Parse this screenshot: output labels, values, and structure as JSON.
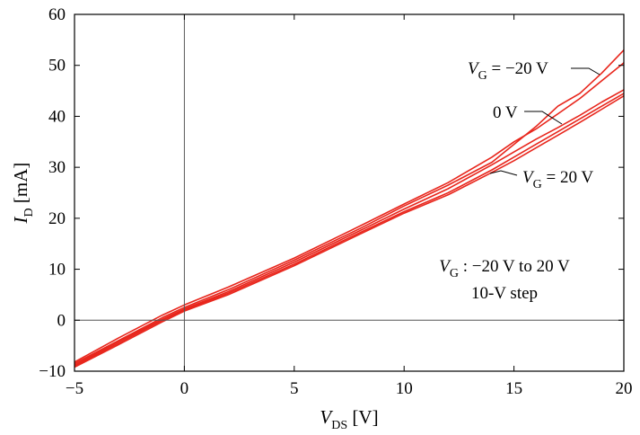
{
  "chart_data": {
    "type": "line",
    "xlabel": {
      "main": "V",
      "sub": "DS",
      "unit": " [V]"
    },
    "ylabel": {
      "main": "I",
      "sub": "D",
      "unit": " [mA]"
    },
    "xlim": [
      -5,
      20
    ],
    "ylim": [
      -10,
      60
    ],
    "xticks": [
      -5,
      0,
      5,
      10,
      15,
      20
    ],
    "yticks": [
      -10,
      0,
      10,
      20,
      30,
      40,
      50,
      60
    ],
    "grid": false,
    "zero_lines": true,
    "series_color": "#e8261c",
    "series": [
      {
        "x": [
          -5,
          -3,
          -1,
          0,
          2,
          5,
          8,
          10,
          12,
          14,
          15,
          16,
          17,
          18,
          19,
          20
        ],
        "y": [
          -8.2,
          -3.5,
          1.0,
          3.0,
          6.5,
          12.2,
          18.5,
          22.8,
          27.0,
          32.0,
          35.0,
          37.5,
          40.5,
          43.5,
          47.0,
          50.5
        ]
      },
      {
        "x": [
          -5,
          -3,
          -1,
          0,
          2,
          5,
          8,
          10,
          12,
          14,
          15,
          16,
          17,
          18,
          19,
          20
        ],
        "y": [
          -8.5,
          -4.0,
          0.5,
          2.5,
          6.0,
          11.8,
          18.0,
          22.4,
          26.5,
          31.0,
          34.5,
          38.0,
          42.0,
          44.5,
          48.5,
          53.0
        ]
      },
      {
        "x": [
          -5,
          -3,
          -1,
          0,
          2,
          5,
          8,
          10,
          12,
          14,
          15,
          16,
          17,
          18,
          19,
          20
        ],
        "y": [
          -8.8,
          -4.2,
          0.2,
          2.2,
          5.6,
          11.4,
          17.6,
          21.8,
          25.8,
          30.5,
          33.0,
          35.5,
          37.8,
          40.2,
          42.8,
          45.2
        ]
      },
      {
        "x": [
          -5,
          -3,
          -1,
          0,
          2,
          5,
          8,
          10,
          12,
          14,
          15,
          16,
          17,
          18,
          19,
          20
        ],
        "y": [
          -9.0,
          -4.5,
          0.0,
          2.0,
          5.3,
          11.0,
          17.2,
          21.3,
          25.0,
          29.5,
          32.0,
          34.5,
          37.0,
          39.5,
          42.0,
          44.5
        ]
      },
      {
        "x": [
          -5,
          -3,
          -1,
          0,
          2,
          5,
          8,
          10,
          12,
          14,
          15,
          16,
          17,
          18,
          19,
          20
        ],
        "y": [
          -9.2,
          -4.8,
          -0.3,
          1.8,
          5.0,
          10.7,
          16.9,
          21.0,
          24.6,
          29.0,
          31.3,
          33.8,
          36.3,
          38.8,
          41.4,
          44.0
        ]
      }
    ],
    "annotations": {
      "top": {
        "main": "V",
        "sub": "G",
        "rest": " = −20 V"
      },
      "mid": "0 V",
      "bottom": {
        "main": "V",
        "sub": "G",
        "rest": " = 20 V"
      },
      "range": {
        "main": "V",
        "sub": "G",
        "rest": " : −20 V to 20 V"
      },
      "step": "10-V step"
    }
  }
}
